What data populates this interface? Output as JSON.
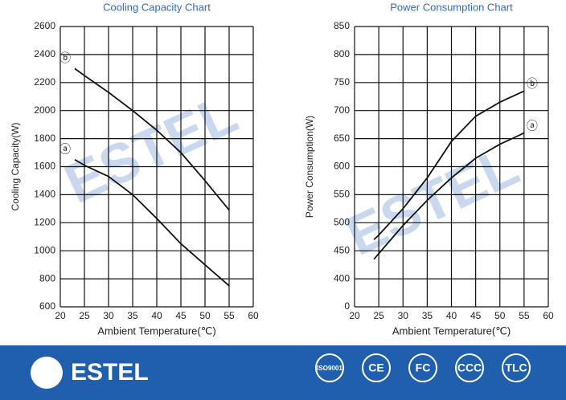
{
  "chart_data": [
    {
      "type": "line",
      "title": "Cooling Capacity Chart",
      "x_label": "Ambient Temperature(℃)",
      "y_label": "Cooling Capacity(W)",
      "x": [
        23,
        25,
        30,
        35,
        40,
        45,
        50,
        55
      ],
      "series": [
        {
          "name": "ⓑ",
          "color": "#111111",
          "values": [
            2300,
            2250,
            2130,
            2000,
            1860,
            1700,
            1500,
            1290
          ]
        },
        {
          "name": "ⓐ",
          "color": "#111111",
          "values": [
            1650,
            1610,
            1530,
            1400,
            1230,
            1050,
            900,
            750
          ]
        }
      ],
      "xlim": [
        20,
        60
      ],
      "xticks": [
        20,
        25,
        30,
        35,
        40,
        45,
        50,
        55,
        60
      ],
      "ylim": [
        600,
        2600
      ],
      "yticks": [
        600,
        800,
        1000,
        1200,
        1400,
        1600,
        1800,
        2000,
        2200,
        2400,
        2600
      ],
      "grid": true
    },
    {
      "type": "line",
      "title": "Power Consumption Chart",
      "x_label": "Ambient Temperature(℃)",
      "y_label": "Power Consumption(W)",
      "x": [
        24,
        25,
        30,
        35,
        40,
        45,
        50,
        55
      ],
      "series": [
        {
          "name": "ⓑ",
          "color": "#111111",
          "values": [
            470,
            478,
            525,
            580,
            645,
            690,
            715,
            735
          ]
        },
        {
          "name": "ⓐ",
          "color": "#111111",
          "values": [
            435,
            445,
            495,
            540,
            580,
            615,
            640,
            660
          ]
        }
      ],
      "xlim": [
        20,
        60
      ],
      "xticks": [
        20,
        25,
        30,
        35,
        40,
        45,
        50,
        55,
        60
      ],
      "ylim": [
        350,
        850
      ],
      "yticks": [
        {
          "value": 350,
          "label": "0"
        },
        400,
        450,
        500,
        550,
        600,
        650,
        700,
        750,
        800,
        850
      ],
      "grid": true
    }
  ],
  "watermark": "ESTEL",
  "footer": {
    "brand": "ESTEL",
    "certifications": [
      "ISO9001",
      "CE",
      "FC",
      "CCC",
      "TLC"
    ]
  }
}
